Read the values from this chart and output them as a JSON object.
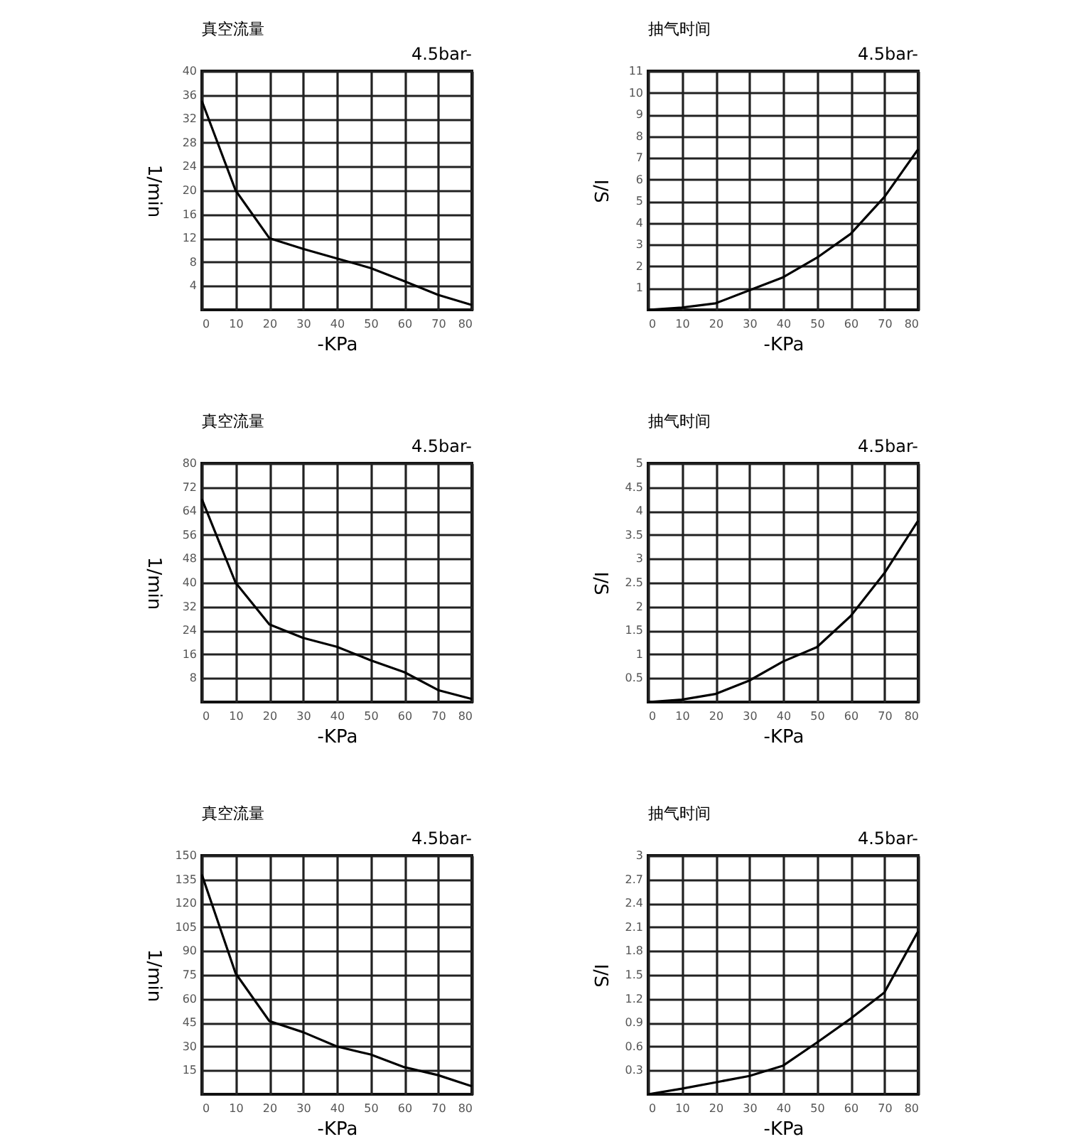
{
  "chart_data": [
    {
      "type": "line",
      "title": "真空流量",
      "annotations": [
        "4.5bar-"
      ],
      "xlabel": "-KPa",
      "ylabel": "1/min",
      "x": [
        0,
        10,
        20,
        30,
        40,
        50,
        60,
        70,
        80
      ],
      "series": [
        {
          "color": "#000000",
          "values": [
            35,
            20,
            12,
            10.2,
            8.6,
            7,
            4.8,
            2.5,
            0.8
          ]
        }
      ],
      "xlim": [
        0,
        80
      ],
      "xticks": [
        0,
        10,
        20,
        30,
        40,
        50,
        60,
        70,
        80
      ],
      "ylim": [
        0,
        40
      ],
      "yticks": [
        4,
        8,
        12,
        16,
        20,
        24,
        28,
        32,
        36,
        40
      ],
      "grid": true
    },
    {
      "type": "line",
      "title": "抽气时间",
      "annotations": [
        "4.5bar-"
      ],
      "xlabel": "-KPa",
      "ylabel": "I/S",
      "x": [
        0,
        10,
        20,
        30,
        40,
        50,
        60,
        70,
        80
      ],
      "series": [
        {
          "color": "#000000",
          "values": [
            0,
            0.1,
            0.3,
            0.9,
            1.5,
            2.4,
            3.5,
            5.2,
            7.4
          ]
        }
      ],
      "xlim": [
        0,
        80
      ],
      "xticks": [
        0,
        10,
        20,
        30,
        40,
        50,
        60,
        70,
        80
      ],
      "ylim": [
        0,
        11
      ],
      "yticks": [
        1,
        2,
        3,
        4,
        5,
        6,
        7,
        8,
        9,
        10,
        11
      ],
      "grid": true
    },
    {
      "type": "line",
      "title": "真空流量",
      "annotations": [
        "4.5bar-"
      ],
      "xlabel": "-KPa",
      "ylabel": "1/min",
      "x": [
        0,
        10,
        20,
        30,
        40,
        50,
        60,
        70,
        80
      ],
      "series": [
        {
          "color": "#000000",
          "values": [
            68,
            40,
            26,
            21.5,
            18.5,
            14,
            10,
            4,
            1
          ]
        }
      ],
      "xlim": [
        0,
        80
      ],
      "xticks": [
        0,
        10,
        20,
        30,
        40,
        50,
        60,
        70,
        80
      ],
      "ylim": [
        0,
        80
      ],
      "yticks": [
        8,
        16,
        24,
        32,
        40,
        48,
        56,
        64,
        72,
        80
      ],
      "grid": true
    },
    {
      "type": "line",
      "title": "抽气时间",
      "annotations": [
        "4.5bar-"
      ],
      "xlabel": "-KPa",
      "ylabel": "I/S",
      "x": [
        0,
        10,
        20,
        30,
        40,
        50,
        60,
        70,
        80
      ],
      "series": [
        {
          "color": "#000000",
          "values": [
            0,
            0.05,
            0.17,
            0.45,
            0.85,
            1.15,
            1.8,
            2.7,
            3.8
          ]
        }
      ],
      "xlim": [
        0,
        80
      ],
      "xticks": [
        0,
        10,
        20,
        30,
        40,
        50,
        60,
        70,
        80
      ],
      "ylim": [
        0,
        5
      ],
      "yticks": [
        0.5,
        1,
        1.5,
        2,
        2.5,
        3,
        3.5,
        4,
        4.5,
        5
      ],
      "grid": true
    },
    {
      "type": "line",
      "title": "真空流量",
      "annotations": [
        "4.5bar-"
      ],
      "xlabel": "-KPa",
      "ylabel": "1/min",
      "x": [
        0,
        10,
        20,
        30,
        40,
        50,
        60,
        70,
        80
      ],
      "series": [
        {
          "color": "#000000",
          "values": [
            138,
            76,
            46,
            39,
            30,
            25,
            17,
            12,
            5
          ]
        }
      ],
      "xlim": [
        0,
        80
      ],
      "xticks": [
        0,
        10,
        20,
        30,
        40,
        50,
        60,
        70,
        80
      ],
      "ylim": [
        0,
        150
      ],
      "yticks": [
        15,
        30,
        45,
        60,
        75,
        90,
        105,
        120,
        135,
        150
      ],
      "grid": true
    },
    {
      "type": "line",
      "title": "抽气时间",
      "annotations": [
        "4.5bar-"
      ],
      "xlabel": "-KPa",
      "ylabel": "I/S",
      "x": [
        0,
        10,
        20,
        30,
        40,
        50,
        60,
        70,
        80
      ],
      "series": [
        {
          "color": "#000000",
          "values": [
            0,
            0.07,
            0.15,
            0.23,
            0.36,
            0.65,
            0.95,
            1.28,
            2.05
          ]
        }
      ],
      "xlim": [
        0,
        80
      ],
      "xticks": [
        0,
        10,
        20,
        30,
        40,
        50,
        60,
        70,
        80
      ],
      "ylim": [
        0,
        3
      ],
      "yticks": [
        0.3,
        0.6,
        0.9,
        1.2,
        1.5,
        1.8,
        2.1,
        2.4,
        2.7,
        3
      ],
      "grid": true
    }
  ]
}
